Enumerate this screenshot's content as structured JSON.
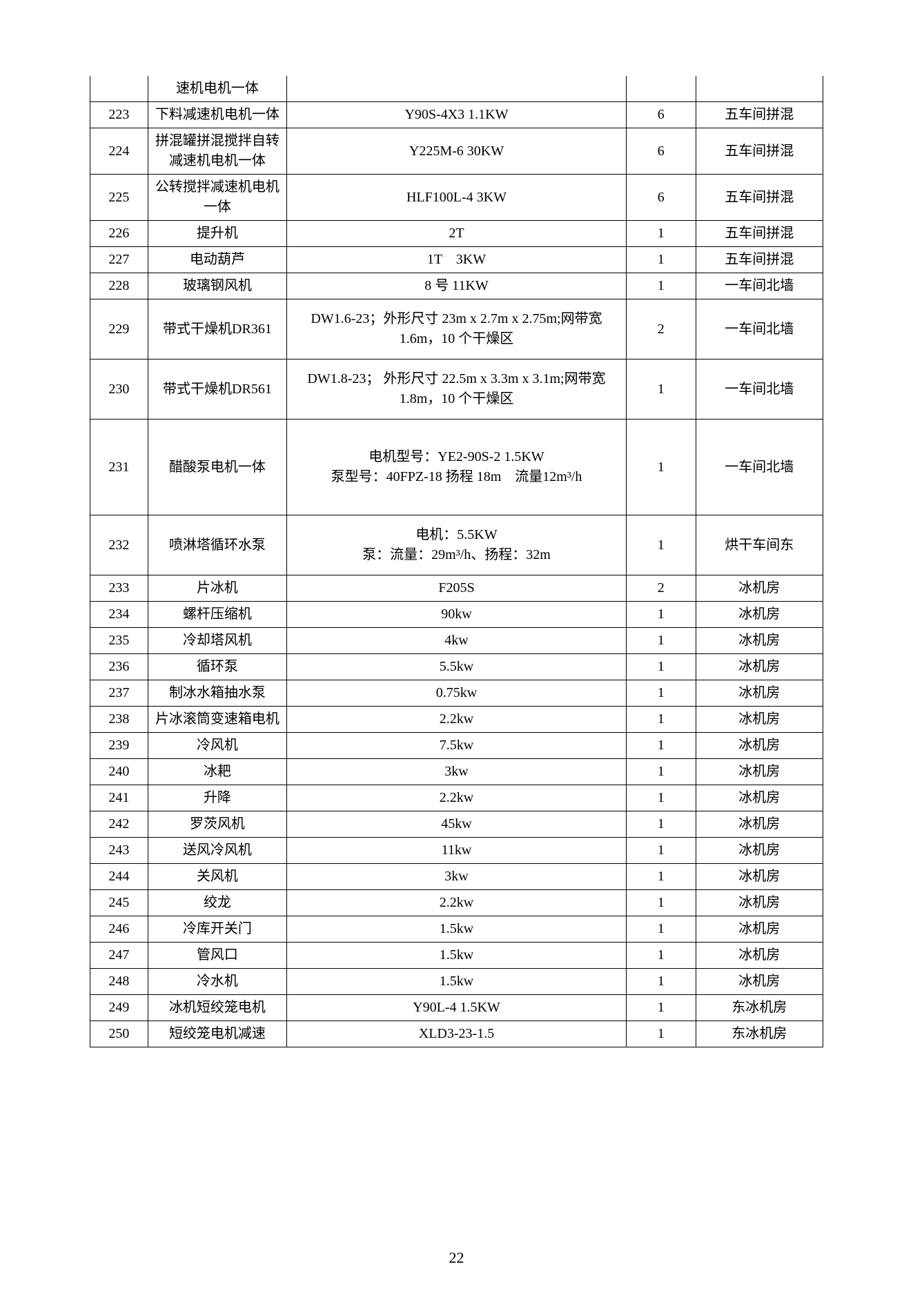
{
  "pageNumber": "22",
  "table": {
    "border_color": "#000000",
    "background_color": "#ffffff",
    "font_family": "SimSun",
    "base_fontsize": 20,
    "col_widths_pct": [
      7.5,
      18,
      44,
      9,
      16.5
    ],
    "rows": [
      {
        "c0": "",
        "c1": "速机电机一体",
        "c2": "",
        "c3": "",
        "c4": "",
        "noTop": true
      },
      {
        "c0": "223",
        "c1": "下料减速机电机一体",
        "c2": "Y90S-4X3 1.1KW",
        "c3": "6",
        "c4": "五车间拼混"
      },
      {
        "c0": "224",
        "c1": "拼混罐拼混搅拌自转减速机电机一体",
        "c2": "Y225M-6 30KW",
        "c3": "6",
        "c4": "五车间拼混"
      },
      {
        "c0": "225",
        "c1": "公转搅拌减速机电机一体",
        "c2": "HLF100L-4 3KW",
        "c3": "6",
        "c4": "五车间拼混"
      },
      {
        "c0": "226",
        "c1": "提升机",
        "c2": "2T",
        "c3": "1",
        "c4": "五车间拼混"
      },
      {
        "c0": "227",
        "c1": "电动葫芦",
        "c2": "1T　3KW",
        "c3": "1",
        "c4": "五车间拼混"
      },
      {
        "c0": "228",
        "c1": "玻璃钢风机",
        "c2": "8 号  11KW",
        "c3": "1",
        "c4": "一车间北墙"
      },
      {
        "c0": "229",
        "c1": "带式干燥机DR361",
        "c2": "DW1.6-23；外形尺寸 23m x 2.7m x 2.75m;网带宽 1.6m，10 个干燥区",
        "c3": "2",
        "c4": "一车间北墙",
        "pad": true
      },
      {
        "c0": "230",
        "c1": "带式干燥机DR561",
        "c2": "DW1.8-23； 外形尺寸 22.5m x 3.3m x 3.1m;网带宽 1.8m，10 个干燥区",
        "c3": "1",
        "c4": "一车间北墙",
        "pad": true
      },
      {
        "c0": "231",
        "c1": "醋酸泵电机一体",
        "c2": "电机型号：YE2-90S-2 1.5KW\n泵型号：40FPZ-18  扬程 18m　流量12m³/h",
        "c3": "1",
        "c4": "一车间北墙",
        "tall": true
      },
      {
        "c0": "232",
        "c1": "喷淋塔循环水泵",
        "c2": "电机：5.5KW\n泵：流量：29m³/h、扬程：32m",
        "c3": "1",
        "c4": "烘干车间东",
        "pad": true
      },
      {
        "c0": "233",
        "c1": "片冰机",
        "c2": "F205S",
        "c3": "2",
        "c4": "冰机房"
      },
      {
        "c0": "234",
        "c1": "螺杆压缩机",
        "c2": "90kw",
        "c3": "1",
        "c4": "冰机房"
      },
      {
        "c0": "235",
        "c1": "冷却塔风机",
        "c2": "4kw",
        "c3": "1",
        "c4": "冰机房"
      },
      {
        "c0": "236",
        "c1": "循环泵",
        "c2": "5.5kw",
        "c3": "1",
        "c4": "冰机房"
      },
      {
        "c0": "237",
        "c1": "制冰水箱抽水泵",
        "c2": "0.75kw",
        "c3": "1",
        "c4": "冰机房"
      },
      {
        "c0": "238",
        "c1": "片冰滚筒变速箱电机",
        "c2": "2.2kw",
        "c3": "1",
        "c4": "冰机房"
      },
      {
        "c0": "239",
        "c1": "冷风机",
        "c2": "7.5kw",
        "c3": "1",
        "c4": "冰机房"
      },
      {
        "c0": "240",
        "c1": "冰耙",
        "c2": "3kw",
        "c3": "1",
        "c4": "冰机房"
      },
      {
        "c0": "241",
        "c1": "升降",
        "c2": "2.2kw",
        "c3": "1",
        "c4": "冰机房"
      },
      {
        "c0": "242",
        "c1": "罗茨风机",
        "c2": "45kw",
        "c3": "1",
        "c4": "冰机房"
      },
      {
        "c0": "243",
        "c1": "送风冷风机",
        "c2": "11kw",
        "c3": "1",
        "c4": "冰机房"
      },
      {
        "c0": "244",
        "c1": "关风机",
        "c2": "3kw",
        "c3": "1",
        "c4": "冰机房"
      },
      {
        "c0": "245",
        "c1": "绞龙",
        "c2": "2.2kw",
        "c3": "1",
        "c4": "冰机房"
      },
      {
        "c0": "246",
        "c1": "冷库开关门",
        "c2": "1.5kw",
        "c3": "1",
        "c4": "冰机房"
      },
      {
        "c0": "247",
        "c1": "管风口",
        "c2": "1.5kw",
        "c3": "1",
        "c4": "冰机房"
      },
      {
        "c0": "248",
        "c1": "冷水机",
        "c2": "1.5kw",
        "c3": "1",
        "c4": "冰机房"
      },
      {
        "c0": "249",
        "c1": "冰机短绞笼电机",
        "c2": "Y90L-4 1.5KW",
        "c3": "1",
        "c4": "东冰机房"
      },
      {
        "c0": "250",
        "c1": "短绞笼电机减速",
        "c2": "XLD3-23-1.5",
        "c3": "1",
        "c4": "东冰机房"
      }
    ]
  }
}
